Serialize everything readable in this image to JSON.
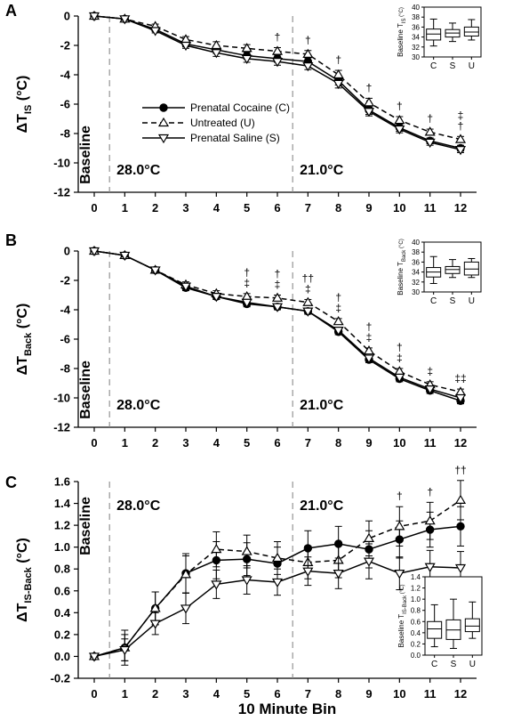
{
  "figure": {
    "xlabel": "10 Minute Bin",
    "legend": [
      {
        "name": "Prenatal Cocaine (C)",
        "marker": "circle-filled",
        "dash": "solid"
      },
      {
        "name": "Untreated (U)",
        "marker": "triangle-up-open",
        "dash": "dashed"
      },
      {
        "name": "Prenatal Saline (S)",
        "marker": "triangle-down-open",
        "dash": "solid"
      }
    ],
    "phase_labels": [
      "Baseline",
      "28.0°C",
      "21.0°C"
    ],
    "colors": {
      "line": "#000000",
      "divider": "#8a8a8a",
      "background": "#ffffff"
    }
  },
  "chart_data": [
    {
      "panel": "A",
      "type": "line",
      "ylabel": {
        "main": "ΔT",
        "sub": "IS",
        "unit": " (°C)"
      },
      "x": [
        0,
        1,
        2,
        3,
        4,
        5,
        6,
        7,
        8,
        9,
        10,
        11,
        12
      ],
      "xticks": [
        "0",
        "1",
        "2",
        "3",
        "4",
        "5",
        "6",
        "7",
        "8",
        "9",
        "10",
        "11",
        "12"
      ],
      "ylim": [
        -12,
        0
      ],
      "yticks": [
        "0",
        "-2",
        "-4",
        "-6",
        "-8",
        "-10",
        "-12"
      ],
      "series": [
        {
          "name": "Prenatal Cocaine (C)",
          "values": [
            0,
            -0.2,
            -0.9,
            -1.9,
            -2.3,
            -2.7,
            -2.9,
            -3.1,
            -4.4,
            -6.4,
            -7.6,
            -8.5,
            -9.0
          ],
          "err": [
            0,
            0.1,
            0.15,
            0.2,
            0.25,
            0.25,
            0.25,
            0.25,
            0.3,
            0.3,
            0.25,
            0.2,
            0.2
          ]
        },
        {
          "name": "Untreated (U)",
          "values": [
            0,
            -0.2,
            -0.7,
            -1.6,
            -2.0,
            -2.2,
            -2.4,
            -2.6,
            -4.0,
            -5.9,
            -7.1,
            -7.9,
            -8.4
          ],
          "err": [
            0,
            0.1,
            0.15,
            0.2,
            0.25,
            0.25,
            0.25,
            0.25,
            0.3,
            0.3,
            0.25,
            0.2,
            0.2
          ]
        },
        {
          "name": "Prenatal Saline (S)",
          "values": [
            0,
            -0.2,
            -1.0,
            -2.0,
            -2.5,
            -2.9,
            -3.1,
            -3.4,
            -4.6,
            -6.5,
            -7.7,
            -8.6,
            -9.1
          ],
          "err": [
            0,
            0.1,
            0.15,
            0.2,
            0.25,
            0.25,
            0.25,
            0.25,
            0.3,
            0.3,
            0.25,
            0.2,
            0.2
          ]
        }
      ],
      "significance": [
        {
          "x": 6,
          "marks": [
            "†"
          ]
        },
        {
          "x": 7,
          "marks": [
            "†"
          ]
        },
        {
          "x": 8,
          "marks": [
            "†"
          ]
        },
        {
          "x": 9,
          "marks": [
            "†"
          ]
        },
        {
          "x": 10,
          "marks": [
            "†"
          ]
        },
        {
          "x": 11,
          "marks": [
            "†"
          ]
        },
        {
          "x": 12,
          "marks": [
            "‡",
            "†"
          ]
        }
      ],
      "inset": {
        "type": "box",
        "ylabel": {
          "main": "Baseline T",
          "sub": "IS",
          "unit": " (°C)"
        },
        "categories": [
          "C",
          "S",
          "U"
        ],
        "ylim": [
          30,
          40
        ],
        "yticks": [
          "30",
          "32",
          "34",
          "36",
          "38",
          "40"
        ],
        "boxes": [
          {
            "min": 32.2,
            "q1": 33.4,
            "median": 34.6,
            "q3": 35.6,
            "max": 37.6
          },
          {
            "min": 33.1,
            "q1": 34.0,
            "median": 34.8,
            "q3": 35.5,
            "max": 36.8
          },
          {
            "min": 33.4,
            "q1": 34.2,
            "median": 35.0,
            "q3": 36.0,
            "max": 37.5
          }
        ]
      }
    },
    {
      "panel": "B",
      "type": "line",
      "ylabel": {
        "main": "ΔT",
        "sub": "Back",
        "unit": " (°C)"
      },
      "x": [
        0,
        1,
        2,
        3,
        4,
        5,
        6,
        7,
        8,
        9,
        10,
        11,
        12
      ],
      "xticks": [
        "0",
        "1",
        "2",
        "3",
        "4",
        "5",
        "6",
        "7",
        "8",
        "9",
        "10",
        "11",
        "12"
      ],
      "ylim": [
        -12,
        0
      ],
      "yticks": [
        "0",
        "-2",
        "-4",
        "-6",
        "-8",
        "-10",
        "-12"
      ],
      "series": [
        {
          "name": "Prenatal Cocaine (C)",
          "values": [
            0,
            -0.3,
            -1.3,
            -2.5,
            -3.1,
            -3.6,
            -3.8,
            -4.1,
            -5.5,
            -7.4,
            -8.7,
            -9.5,
            -10.2
          ],
          "err": [
            0,
            0.1,
            0.15,
            0.2,
            0.2,
            0.2,
            0.2,
            0.2,
            0.2,
            0.2,
            0.2,
            0.2,
            0.2
          ]
        },
        {
          "name": "Untreated (U)",
          "values": [
            0,
            -0.3,
            -1.3,
            -2.3,
            -2.9,
            -3.1,
            -3.2,
            -3.5,
            -4.8,
            -6.8,
            -8.2,
            -9.1,
            -9.6
          ],
          "err": [
            0,
            0.1,
            0.15,
            0.2,
            0.2,
            0.2,
            0.2,
            0.2,
            0.2,
            0.2,
            0.2,
            0.2,
            0.2
          ]
        },
        {
          "name": "Prenatal Saline (S)",
          "values": [
            0,
            -0.3,
            -1.3,
            -2.4,
            -3.1,
            -3.5,
            -3.8,
            -4.1,
            -5.4,
            -7.3,
            -8.6,
            -9.4,
            -10.0
          ],
          "err": [
            0,
            0.1,
            0.15,
            0.2,
            0.2,
            0.2,
            0.2,
            0.2,
            0.2,
            0.2,
            0.2,
            0.2,
            0.2
          ]
        }
      ],
      "significance": [
        {
          "x": 5,
          "marks": [
            "†",
            "‡"
          ]
        },
        {
          "x": 6,
          "marks": [
            "†",
            "‡"
          ]
        },
        {
          "x": 7,
          "marks": [
            "††",
            "‡"
          ]
        },
        {
          "x": 8,
          "marks": [
            "†",
            "‡"
          ]
        },
        {
          "x": 9,
          "marks": [
            "†",
            "‡"
          ]
        },
        {
          "x": 10,
          "marks": [
            "†",
            "‡"
          ]
        },
        {
          "x": 11,
          "marks": [
            "‡"
          ]
        },
        {
          "x": 12,
          "marks": [
            "‡‡"
          ]
        }
      ],
      "inset": {
        "type": "box",
        "ylabel": {
          "main": "Baseline T",
          "sub": "Back",
          "unit": " (°C)"
        },
        "categories": [
          "C",
          "S",
          "U"
        ],
        "ylim": [
          30,
          40
        ],
        "yticks": [
          "30",
          "32",
          "34",
          "36",
          "38",
          "40"
        ],
        "boxes": [
          {
            "min": 31.7,
            "q1": 33.0,
            "median": 34.0,
            "q3": 34.9,
            "max": 37.1
          },
          {
            "min": 32.9,
            "q1": 33.7,
            "median": 34.5,
            "q3": 35.1,
            "max": 36.5
          },
          {
            "min": 32.9,
            "q1": 33.4,
            "median": 34.6,
            "q3": 36.0,
            "max": 36.7
          }
        ]
      }
    },
    {
      "panel": "C",
      "type": "line",
      "ylabel": {
        "main": "ΔT",
        "sub": "IS-Back",
        "unit": " (°C)"
      },
      "x": [
        0,
        1,
        2,
        3,
        4,
        5,
        6,
        7,
        8,
        9,
        10,
        11,
        12
      ],
      "xticks": [
        "0",
        "1",
        "2",
        "3",
        "4",
        "5",
        "6",
        "7",
        "8",
        "9",
        "10",
        "11",
        "12"
      ],
      "ylim": [
        -0.2,
        1.6
      ],
      "yticks": [
        "-0.2",
        "0.0",
        "0.2",
        "0.4",
        "0.6",
        "0.8",
        "1.0",
        "1.2",
        "1.4",
        "1.6"
      ],
      "series": [
        {
          "name": "Prenatal Cocaine (C)",
          "values": [
            0.0,
            0.08,
            0.44,
            0.76,
            0.88,
            0.89,
            0.85,
            0.99,
            1.03,
            0.98,
            1.07,
            1.16,
            1.19
          ],
          "err": [
            0,
            0.16,
            0.15,
            0.18,
            0.17,
            0.15,
            0.15,
            0.16,
            0.16,
            0.17,
            0.17,
            0.16,
            0.18
          ]
        },
        {
          "name": "Untreated (U)",
          "values": [
            0.0,
            0.08,
            0.44,
            0.75,
            0.98,
            0.96,
            0.9,
            0.86,
            0.88,
            1.08,
            1.19,
            1.24,
            1.43
          ],
          "err": [
            0,
            0.12,
            0.15,
            0.17,
            0.16,
            0.15,
            0.15,
            0.15,
            0.16,
            0.16,
            0.18,
            0.17,
            0.18
          ]
        },
        {
          "name": "Prenatal Saline (S)",
          "values": [
            0.0,
            0.06,
            0.3,
            0.44,
            0.66,
            0.7,
            0.68,
            0.78,
            0.76,
            0.87,
            0.76,
            0.82,
            0.81
          ],
          "err": [
            0,
            0.1,
            0.1,
            0.14,
            0.13,
            0.13,
            0.12,
            0.13,
            0.14,
            0.16,
            0.15,
            0.15,
            0.15
          ]
        }
      ],
      "significance": [
        {
          "x": 10,
          "marks": [
            "†"
          ]
        },
        {
          "x": 11,
          "marks": [
            "†"
          ]
        },
        {
          "x": 12,
          "marks": [
            "††"
          ]
        }
      ],
      "inset": {
        "type": "box",
        "ylabel": {
          "main": "Baseline T",
          "sub": "IS-Back",
          "unit": " (°C)"
        },
        "categories": [
          "C",
          "S",
          "U"
        ],
        "ylim": [
          0.0,
          1.4
        ],
        "yticks": [
          "0.0",
          "0.2",
          "0.4",
          "0.6",
          "0.8",
          "1.0",
          "1.2",
          "1.4"
        ],
        "boxes": [
          {
            "min": 0.15,
            "q1": 0.3,
            "median": 0.47,
            "q3": 0.6,
            "max": 0.9
          },
          {
            "min": 0.12,
            "q1": 0.28,
            "median": 0.45,
            "q3": 0.63,
            "max": 1.0
          },
          {
            "min": 0.3,
            "q1": 0.42,
            "median": 0.52,
            "q3": 0.65,
            "max": 0.95
          }
        ]
      }
    }
  ]
}
